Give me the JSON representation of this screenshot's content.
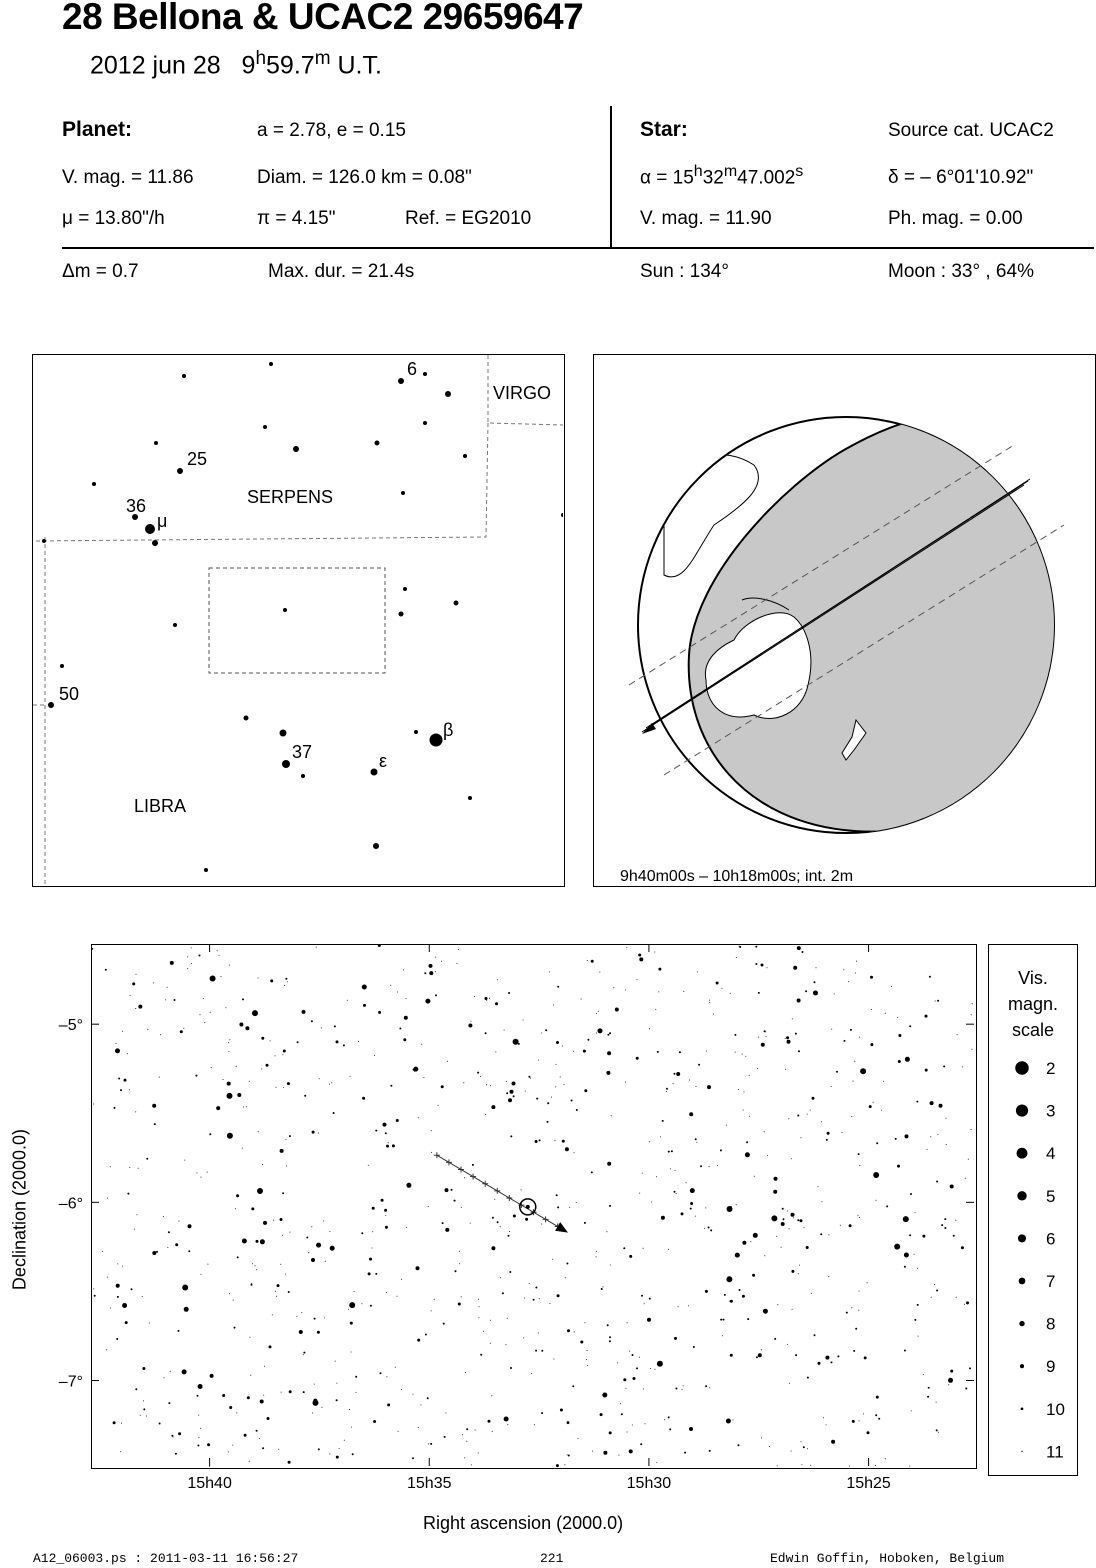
{
  "header": {
    "title": "28 Bellona  &  UCAC2 29659647",
    "date": "2012 jun 28",
    "time_h": "9",
    "time_m_val": "59.7",
    "time_suffix": "U.T."
  },
  "planet": {
    "heading": "Planet:",
    "orbit": "a = 2.78, e = 0.15",
    "vmag": "V. mag. = 11.86",
    "diam": "Diam. = 126.0 km = 0.08\"",
    "mu": "μ =  13.80\"/h",
    "pi": "π =  4.15\"",
    "ref": "Ref. = EG2010"
  },
  "star": {
    "heading": "Star:",
    "source": "Source cat.  UCAC2",
    "ra_h": "15",
    "ra_m": "32",
    "ra_s": "47.002",
    "ra_prefix": "α = ",
    "dec": "δ = – 6°01'10.92\"",
    "vmag": "V. mag. = 11.90",
    "phmag": "Ph. mag. =  0.00"
  },
  "event": {
    "dm": "Δm = 0.7",
    "maxdur": "Max. dur. = 21.4s",
    "sun": "Sun : 134°",
    "moon": "Moon :  33° , 64%"
  },
  "finder": {
    "constellations": [
      "SERPENS",
      "VIRGO",
      "LIBRA"
    ],
    "labels": [
      "6",
      "25",
      "36",
      "μ",
      "50",
      "37",
      "β",
      "ε"
    ]
  },
  "globe": {
    "caption": "9h40m00s – 10h18m00s; int.  2m"
  },
  "chart_data": {
    "type": "scatter",
    "xlabel": "Right ascension (2000.0)",
    "ylabel": "Declination (2000.0)",
    "x_ticks": [
      "15h40",
      "15h35",
      "15h30",
      "15h25"
    ],
    "y_ticks": [
      "–5°",
      "–6°",
      "–7°"
    ],
    "x_range_minutes": [
      42.7,
      22.6
    ],
    "y_range_deg": [
      -4.55,
      -7.48
    ],
    "star": {
      "ra_min": 32.78,
      "dec": -6.02
    },
    "planet_track_start": {
      "ra_min": 34.85,
      "dec": -5.73
    },
    "planet_track_end": {
      "ra_min": 32.1,
      "dec": -6.13
    },
    "legend_title": [
      "Vis.",
      "magn.",
      "scale"
    ],
    "magnitude_scale": [
      2,
      3,
      4,
      5,
      6,
      7,
      8,
      9,
      10,
      11
    ]
  },
  "footer": {
    "left": "A12_06003.ps : 2011-03-11 16:56:27",
    "center": "221",
    "right": "Edwin Goffin, Hoboken, Belgium"
  }
}
